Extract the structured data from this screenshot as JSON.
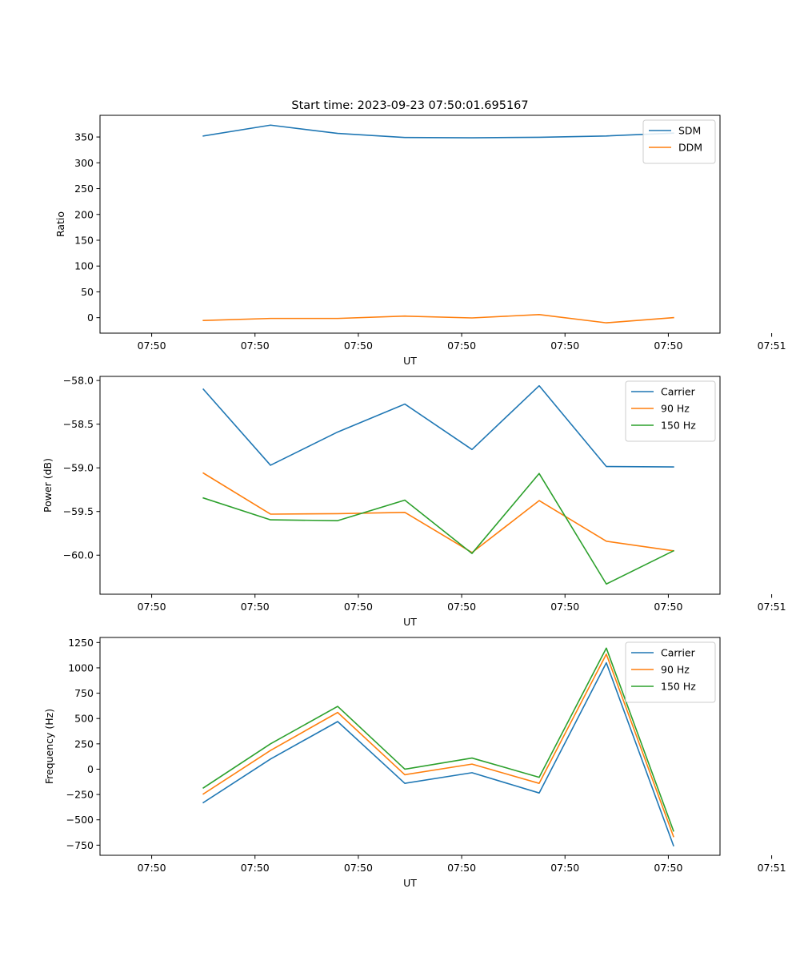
{
  "figure_title": "Start time: 2023-09-23 07:50:01.695167",
  "chart_data": [
    {
      "type": "line",
      "title": "Start time: 2023-09-23 07:50:01.695167",
      "xlabel": "UT",
      "ylabel": "Ratio",
      "xlim": [
        -0.5,
        5.5
      ],
      "ylim": [
        -30,
        392
      ],
      "x": [
        0.5,
        1.15,
        1.8,
        2.45,
        3.1,
        3.75,
        4.4,
        5.05
      ],
      "xticks": [
        0,
        1,
        2,
        3,
        4,
        5,
        6
      ],
      "xtick_labels": [
        "07:50",
        "07:50",
        "07:50",
        "07:50",
        "07:50",
        "07:50",
        "07:51"
      ],
      "yticks": [
        0,
        50,
        100,
        150,
        200,
        250,
        300,
        350
      ],
      "ytick_labels": [
        "0",
        "50",
        "100",
        "150",
        "200",
        "250",
        "300",
        "350"
      ],
      "legend_position": "top-right",
      "series": [
        {
          "name": "SDM",
          "color": "#1f77b4",
          "values": [
            352,
            373,
            357,
            349,
            348.5,
            349.5,
            352,
            357.5
          ]
        },
        {
          "name": "DDM",
          "color": "#ff7f0e",
          "values": [
            -5.5,
            -1.5,
            -1.5,
            3,
            -0.5,
            6,
            -10,
            0
          ]
        }
      ]
    },
    {
      "type": "line",
      "title": "",
      "xlabel": "UT",
      "ylabel": "Power (dB)",
      "xlim": [
        -0.5,
        5.5
      ],
      "ylim": [
        -60.447,
        -57.953
      ],
      "x": [
        0.5,
        1.15,
        1.8,
        2.45,
        3.1,
        3.75,
        4.4,
        5.05
      ],
      "xticks": [
        0,
        1,
        2,
        3,
        4,
        5,
        6
      ],
      "xtick_labels": [
        "07:50",
        "07:50",
        "07:50",
        "07:50",
        "07:50",
        "07:50",
        "07:51"
      ],
      "yticks": [
        -58.0,
        -58.5,
        -59.0,
        -59.5,
        -60.0
      ],
      "ytick_labels": [
        "−58.0",
        "−58.5",
        "−59.0",
        "−59.5",
        "−60.0"
      ],
      "legend_position": "top-right",
      "series": [
        {
          "name": "Carrier",
          "color": "#1f77b4",
          "values": [
            -58.1,
            -58.97,
            -58.59,
            -58.27,
            -58.79,
            -58.06,
            -58.985,
            -58.99
          ]
        },
        {
          "name": "90 Hz",
          "color": "#ff7f0e",
          "values": [
            -59.06,
            -59.53,
            -59.525,
            -59.51,
            -59.97,
            -59.375,
            -59.84,
            -59.95
          ]
        },
        {
          "name": "150 Hz",
          "color": "#2ca02c",
          "values": [
            -59.345,
            -59.595,
            -59.605,
            -59.37,
            -59.98,
            -59.065,
            -60.33,
            -59.95
          ]
        }
      ]
    },
    {
      "type": "line",
      "title": "",
      "xlabel": "UT",
      "ylabel": "Frequency (Hz)",
      "xlim": [
        -0.5,
        5.5
      ],
      "ylim": [
        -850,
        1300
      ],
      "x": [
        0.5,
        1.15,
        1.8,
        2.45,
        3.1,
        3.75,
        4.4,
        5.05
      ],
      "xticks": [
        0,
        1,
        2,
        3,
        4,
        5,
        6
      ],
      "xtick_labels": [
        "07:50",
        "07:50",
        "07:50",
        "07:50",
        "07:50",
        "07:50",
        "07:51"
      ],
      "yticks": [
        -750,
        -500,
        -250,
        0,
        250,
        500,
        750,
        1000,
        1250
      ],
      "ytick_labels": [
        "−750",
        "−500",
        "−250",
        "0",
        "250",
        "500",
        "750",
        "1000",
        "1250"
      ],
      "legend_position": "top-right",
      "series": [
        {
          "name": "Carrier",
          "color": "#1f77b4",
          "values": [
            -330,
            100,
            470,
            -140,
            -35,
            -235,
            1050,
            -755
          ]
        },
        {
          "name": "90 Hz",
          "color": "#ff7f0e",
          "values": [
            -245,
            185,
            560,
            -55,
            50,
            -140,
            1135,
            -665
          ]
        },
        {
          "name": "150 Hz",
          "color": "#2ca02c",
          "values": [
            -185,
            250,
            620,
            0,
            110,
            -80,
            1195,
            -610
          ]
        }
      ]
    }
  ]
}
